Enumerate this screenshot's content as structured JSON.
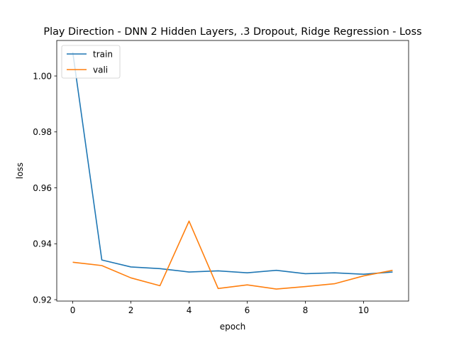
{
  "chart_data": {
    "type": "line",
    "title": "Play Direction - DNN 2 Hidden Layers, .3 Dropout, Ridge Regression - Loss",
    "xlabel": "epoch",
    "ylabel": "loss",
    "xlim": [
      -0.55,
      11.55
    ],
    "ylim": [
      0.9195,
      1.0127
    ],
    "xticks": [
      0,
      2,
      4,
      6,
      8,
      10
    ],
    "yticks": [
      0.92,
      0.94,
      0.96,
      0.98,
      1.0
    ],
    "ytick_labels": [
      "0.92",
      "0.94",
      "0.96",
      "0.98",
      "1.00"
    ],
    "legend_position": "upper-left",
    "x": [
      0,
      1,
      2,
      3,
      4,
      5,
      6,
      7,
      8,
      9,
      10,
      11
    ],
    "series": [
      {
        "name": "train",
        "color": "#1f77b4",
        "values": [
          1.0085,
          0.9342,
          0.9317,
          0.9311,
          0.9299,
          0.9303,
          0.9296,
          0.9305,
          0.9293,
          0.9296,
          0.9291,
          0.9299
        ]
      },
      {
        "name": "vali",
        "color": "#ff7f0e",
        "values": [
          0.9334,
          0.9322,
          0.9278,
          0.925,
          0.9481,
          0.924,
          0.9253,
          0.9238,
          0.9247,
          0.9257,
          0.9285,
          0.9305
        ]
      }
    ]
  }
}
